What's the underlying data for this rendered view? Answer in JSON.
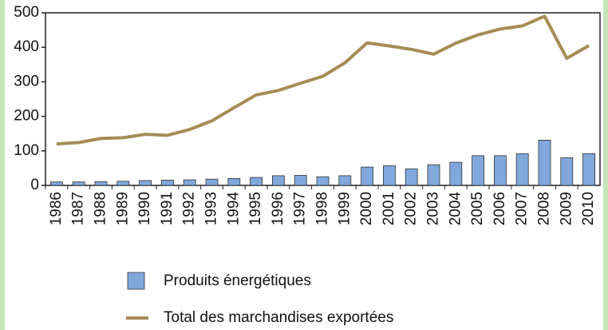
{
  "chart_data": {
    "type": "bar_line",
    "categories": [
      "1986",
      "1987",
      "1988",
      "1989",
      "1990",
      "1991",
      "1992",
      "1993",
      "1994",
      "1995",
      "1996",
      "1997",
      "1998",
      "1999",
      "2000",
      "2001",
      "2002",
      "2003",
      "2004",
      "2005",
      "2006",
      "2007",
      "2008",
      "2009",
      "2010"
    ],
    "series": [
      {
        "name": "Produits énergétiques",
        "type": "bar",
        "color": "#80a8dc",
        "values": [
          10,
          10,
          11,
          12,
          14,
          15,
          16,
          18,
          20,
          23,
          28,
          29,
          25,
          28,
          53,
          57,
          48,
          60,
          67,
          86,
          86,
          92,
          131,
          80,
          92
        ]
      },
      {
        "name": "Total des marchandises exportées",
        "type": "line",
        "color": "#a58c55",
        "values": [
          120,
          124,
          136,
          138,
          148,
          145,
          162,
          187,
          225,
          262,
          275,
          296,
          316,
          355,
          413,
          404,
          394,
          380,
          412,
          436,
          453,
          462,
          490,
          368,
          405
        ]
      }
    ],
    "ylim": [
      0,
      500
    ],
    "yticks": [
      0,
      100,
      200,
      300,
      400,
      500
    ]
  }
}
